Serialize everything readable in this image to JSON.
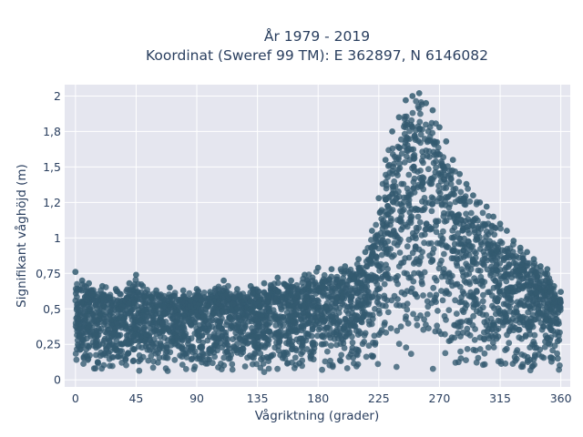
{
  "chart_data": {
    "type": "scatter",
    "title_lines": [
      "År 1979 - 2019",
      "Koordinat (Sweref 99 TM): E 362897, N 6146082"
    ],
    "xlabel": "Vågriktning (grader)",
    "ylabel": "Signifikant våghöjd (m)",
    "xlim": [
      -8,
      367
    ],
    "ylim": [
      -0.05,
      2.08
    ],
    "x_ticks": [
      0,
      45,
      90,
      135,
      180,
      225,
      270,
      315,
      360
    ],
    "x_tick_labels": [
      "0",
      "45",
      "90",
      "135",
      "180",
      "225",
      "270",
      "315",
      "360"
    ],
    "y_ticks": [
      0,
      0.25,
      0.5,
      0.75,
      1,
      1.25,
      1.5,
      1.75,
      2
    ],
    "y_tick_labels": [
      "0",
      "0,25",
      "0,5",
      "0,75",
      "1",
      "1,2",
      "1,5",
      "1,8",
      "2"
    ],
    "grid": true,
    "plot_background": "#e5e6ef",
    "marker_color": "#335a70",
    "series": [
      {
        "description_points": "representative points forming the upper envelope of the dense cloud (direction, height)",
        "x": [
          0,
          5,
          10,
          20,
          30,
          40,
          45,
          50,
          60,
          70,
          80,
          90,
          100,
          110,
          120,
          130,
          140,
          150,
          160,
          170,
          180,
          190,
          200,
          210,
          215,
          220,
          225,
          230,
          235,
          240,
          245,
          250,
          255,
          260,
          265,
          270,
          275,
          280,
          285,
          290,
          295,
          300,
          305,
          310,
          315,
          320,
          325,
          330,
          335,
          340,
          345,
          350,
          355,
          360
        ],
        "y": [
          0.76,
          0.7,
          0.68,
          0.66,
          0.64,
          0.68,
          0.74,
          0.66,
          0.63,
          0.65,
          0.63,
          0.64,
          0.62,
          0.7,
          0.64,
          0.66,
          0.68,
          0.72,
          0.7,
          0.74,
          0.79,
          0.78,
          0.8,
          0.85,
          0.9,
          1.05,
          1.28,
          1.55,
          1.75,
          1.85,
          1.97,
          2.0,
          2.02,
          1.95,
          1.9,
          1.78,
          1.68,
          1.55,
          1.45,
          1.38,
          1.3,
          1.25,
          1.22,
          1.15,
          1.1,
          1.05,
          0.98,
          0.93,
          0.9,
          0.85,
          0.8,
          0.78,
          0.66,
          0.62
        ]
      }
    ]
  }
}
